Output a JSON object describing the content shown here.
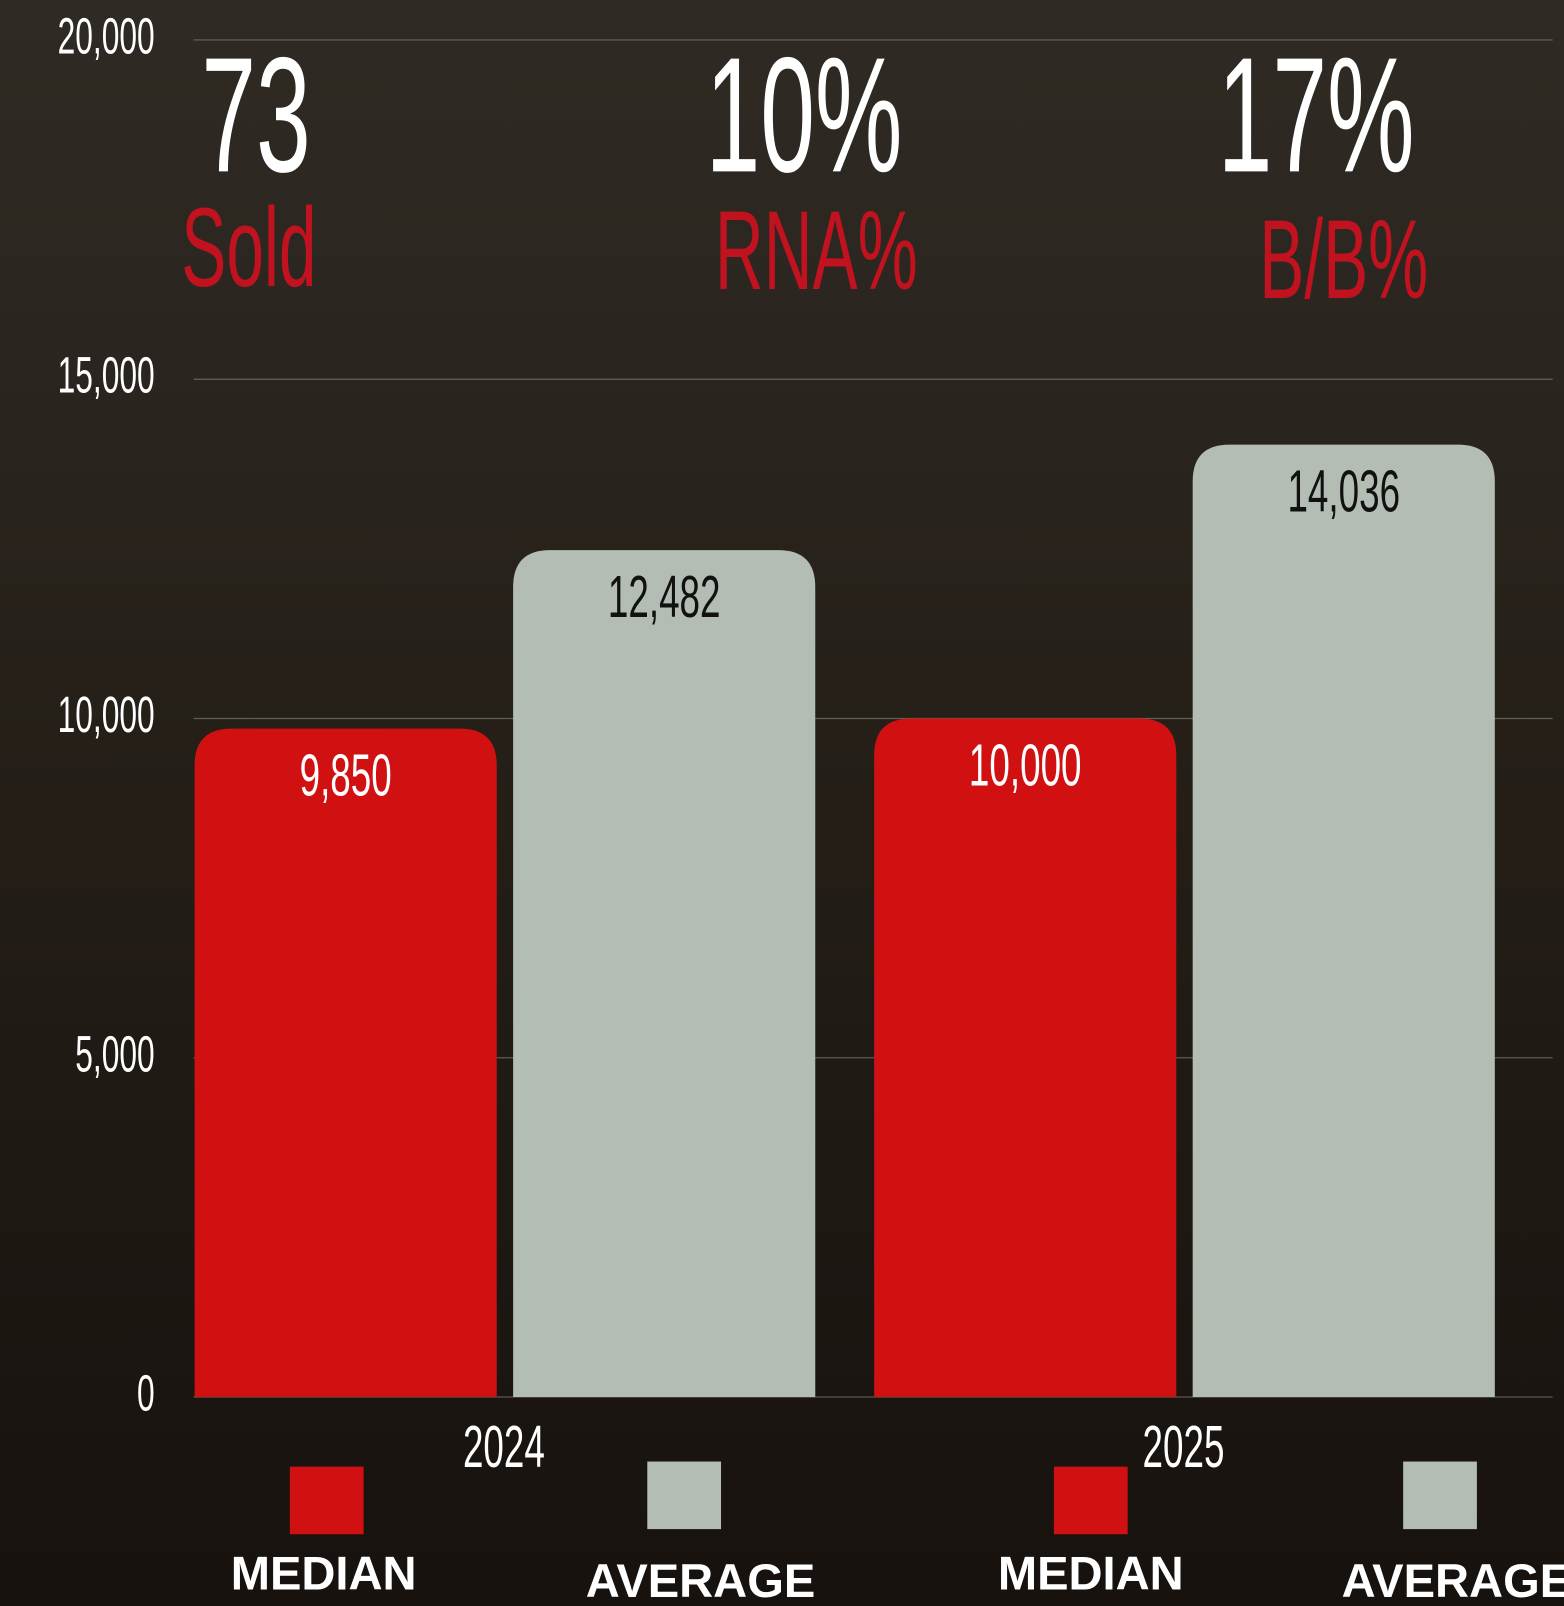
{
  "stats": [
    {
      "value": "73",
      "label": "Sold"
    },
    {
      "value": "10%",
      "label": "RNA%"
    },
    {
      "value": "17%",
      "label": "B/B%"
    }
  ],
  "chart_data": {
    "type": "bar",
    "categories": [
      "2024",
      "2025"
    ],
    "series": [
      {
        "name": "MEDIAN",
        "color": "#d11111",
        "values": [
          9850,
          10000
        ],
        "value_labels": [
          "9,850",
          "10,000"
        ]
      },
      {
        "name": "AVERAGE",
        "color": "#b3bdb3",
        "values": [
          12482,
          14036
        ],
        "value_labels": [
          "12,482",
          "14,036"
        ]
      }
    ],
    "ylim": [
      0,
      20000
    ],
    "yticks": [
      0,
      {
        "value": 5000,
        "label": "5,000"
      },
      {
        "value": 10000,
        "label": "10,000"
      },
      {
        "value": 15000,
        "label": "15,000"
      },
      {
        "value": 20000,
        "label": "20,000"
      }
    ],
    "grid": true
  }
}
